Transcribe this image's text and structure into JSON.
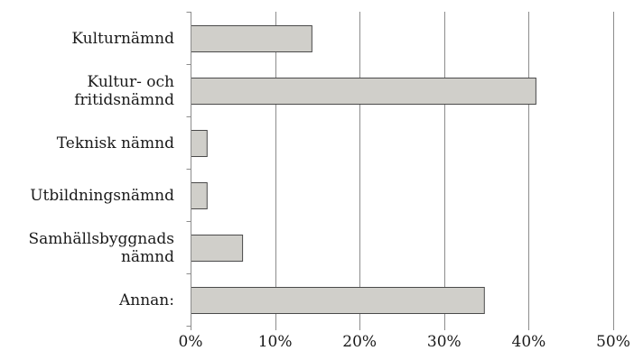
{
  "chart_data": {
    "type": "bar",
    "orientation": "horizontal",
    "categories": [
      [
        "Kulturnämnd"
      ],
      [
        "Kultur- och",
        "fritidsnämnd"
      ],
      [
        "Teknisk nämnd"
      ],
      [
        "Utbildningsnämnd"
      ],
      [
        "Samhällsbyggnads",
        "nämnd"
      ],
      [
        "Annan:"
      ]
    ],
    "values": [
      14.3,
      40.8,
      1.9,
      1.9,
      6.1,
      34.7
    ],
    "xlim": [
      0,
      50
    ],
    "xticks": [
      0,
      10,
      20,
      30,
      40,
      50
    ],
    "tick_labels": [
      "0%",
      "10%",
      "20%",
      "30%",
      "40%",
      "50%"
    ],
    "grid": "vertical",
    "bar_color": "#d0cfca",
    "bar_edge_color": "#4a4a4a",
    "grid_color": "#8c8c8c"
  }
}
